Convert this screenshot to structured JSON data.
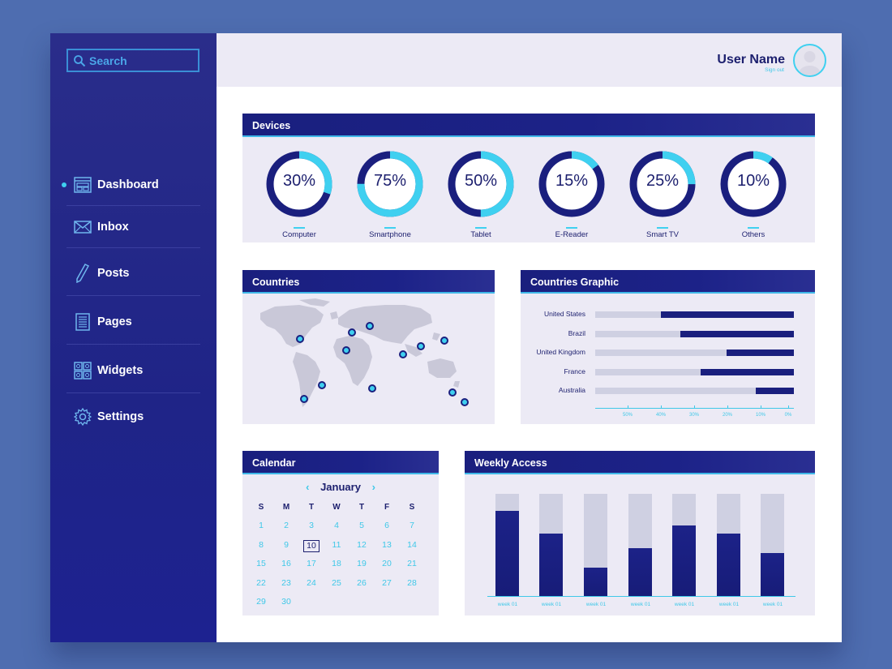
{
  "search": {
    "placeholder": "Search"
  },
  "sidebar": {
    "items": [
      {
        "label": "Dashboard",
        "icon": "dashboard-icon",
        "active": true
      },
      {
        "label": "Inbox",
        "icon": "envelope-icon"
      },
      {
        "label": "Posts",
        "icon": "pencil-icon"
      },
      {
        "label": "Pages",
        "icon": "document-icon"
      },
      {
        "label": "Widgets",
        "icon": "grid-icon"
      },
      {
        "label": "Settings",
        "icon": "gear-icon"
      }
    ]
  },
  "user": {
    "name": "User Name",
    "signout": "Sign out"
  },
  "devices": {
    "title": "Devices",
    "items": [
      {
        "label": "Computer",
        "percent": 30,
        "text": "30%"
      },
      {
        "label": "Smartphone",
        "percent": 75,
        "text": "75%"
      },
      {
        "label": "Tablet",
        "percent": 50,
        "text": "50%"
      },
      {
        "label": "E-Reader",
        "percent": 15,
        "text": "15%"
      },
      {
        "label": "Smart TV",
        "percent": 25,
        "text": "25%"
      },
      {
        "label": "Others",
        "percent": 10,
        "text": "10%"
      }
    ]
  },
  "countries": {
    "title": "Countries"
  },
  "countries_graphic": {
    "title": "Countries Graphic",
    "rows": [
      {
        "label": "United States",
        "value": 67
      },
      {
        "label": "Brazil",
        "value": 57
      },
      {
        "label": "United Kingdom",
        "value": 34
      },
      {
        "label": "France",
        "value": 47
      },
      {
        "label": "Australia",
        "value": 19
      }
    ],
    "ticks": [
      "50%",
      "40%",
      "30%",
      "20%",
      "10%",
      "0%"
    ]
  },
  "calendar": {
    "title": "Calendar",
    "month": "January",
    "prev": "‹",
    "next": "›",
    "weekdays": [
      "S",
      "M",
      "T",
      "W",
      "T",
      "F",
      "S"
    ],
    "today": "10",
    "weeks": [
      [
        "1",
        "2",
        "3",
        "4",
        "5",
        "6",
        "7"
      ],
      [
        "8",
        "9",
        "10",
        "11",
        "12",
        "13",
        "14"
      ],
      [
        "15",
        "16",
        "17",
        "18",
        "19",
        "20",
        "21"
      ],
      [
        "22",
        "23",
        "24",
        "25",
        "26",
        "27",
        "28"
      ],
      [
        "29",
        "30",
        "",
        "",
        "",
        "",
        ""
      ]
    ]
  },
  "weekly": {
    "title": "Weekly Access",
    "labels": [
      "week 01",
      "week 01",
      "week 01",
      "week 01",
      "week 01",
      "week 01",
      "week 01"
    ],
    "values": [
      83,
      61,
      28,
      47,
      69,
      61,
      42
    ]
  },
  "chart_data": [
    {
      "type": "pie",
      "title": "Devices",
      "categories": [
        "Computer",
        "Smartphone",
        "Tablet",
        "E-Reader",
        "Smart TV",
        "Others"
      ],
      "values": [
        30,
        75,
        50,
        15,
        25,
        10
      ]
    },
    {
      "type": "bar",
      "title": "Countries Graphic",
      "categories": [
        "United States",
        "Brazil",
        "United Kingdom",
        "France",
        "Australia"
      ],
      "values": [
        67,
        57,
        34,
        47,
        19
      ]
    },
    {
      "type": "bar",
      "title": "Weekly Access",
      "categories": [
        "week 01",
        "week 01",
        "week 01",
        "week 01",
        "week 01",
        "week 01",
        "week 01"
      ],
      "values": [
        83,
        61,
        28,
        47,
        69,
        61,
        42
      ],
      "ylim": [
        0,
        100
      ]
    }
  ],
  "colors": {
    "accent": "#3fd0f0",
    "navy": "#1a1f7e",
    "panel": "#eceaf5",
    "background": "#4e6db0"
  }
}
